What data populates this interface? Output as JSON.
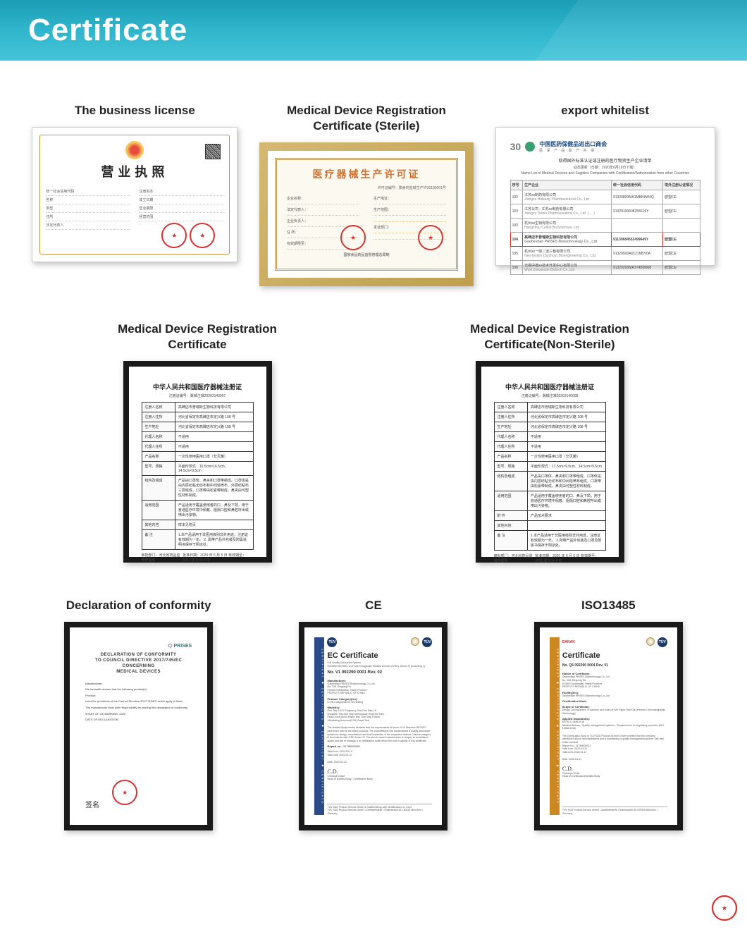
{
  "header": {
    "title": "Certificate"
  },
  "row1": {
    "c1": {
      "title": "The business license",
      "heading": "营业执照",
      "badge_colors": {
        "center": "#e74c3c",
        "ring": "#f5c860"
      },
      "left_fields": [
        "统一社会信用代码",
        "名称",
        "类型",
        "住所",
        "法定代表人"
      ],
      "right_fields": [
        "注册资本",
        "成立日期",
        "营业期限",
        "经营范围"
      ],
      "stamp_color": "#d93030"
    },
    "c2": {
      "title": "Medical Device Registration Certificate (Sterile)",
      "heading": "医疗器械生产许可证",
      "top_right": "许可证编号：豫食药监械生产许20180001号",
      "left_rows": [
        "企业名称：",
        "法定代表人：",
        "企业负责人：",
        "住    所：",
        "有效期限至："
      ],
      "right_rows": [
        "生产地址：",
        "生产范围：",
        "",
        "发证部门：",
        ""
      ],
      "stamp1_text": "河北省",
      "footer": "国家食品药品监督管理总局制",
      "border_color": "#c0995a",
      "title_color": "#d07030"
    },
    "c3": {
      "title": "export whitelist",
      "logo_num": "30",
      "logo_circle_color": "#3aa070",
      "org_cn": "中国医药保健品进出口商会",
      "org_sub": "医 保 产 品    联 产 共 保",
      "caption_cn": "取得国外标准认证或注册的医疗物资生产企业清单",
      "caption_sub": "动态更新（日期：2020年6月19日下载）",
      "caption_en": "Name List of Medical Devices and Supplies Companies with Certification/Authorization from other Countries",
      "cols": [
        "序号",
        "生产企业",
        "统一社会信用代码",
        "境外注册认证情况"
      ],
      "rows": [
        {
          "no": "102",
          "cn": "江苏xx制药有限公司",
          "en": "Jiangsu Huikang Pharmaceutical Co., Ltd",
          "code": "91320800MA1MBN9W4Q",
          "cert": "欧盟CE"
        },
        {
          "no": "103",
          "cn": "江苏公司 - 江苏xx制药有限公司",
          "en": "Jiangsu Demo Pharmaceutical Co., Ltd. ( ... )",
          "code": "91320100608255619Y",
          "cert": "欧盟CE"
        },
        {
          "no": "103",
          "cn": "杭州xx生物有限公司",
          "en": "Hangzhou Calbio BioSciences, Ltd.",
          "code": "",
          "cert": ""
        },
        {
          "no": "104",
          "cn": "高碑店市普瑞斯生物科技有限公司",
          "en": "Gaobeidian PRISES Biotechnology Co., Ltd",
          "code": "91130684552499649Y",
          "cert": "欧盟CE",
          "highlight": true
        },
        {
          "no": "105",
          "cn": "杭州xx一街二道三巷有限公司",
          "en": "Neo-bioxim (Suzhou) Bioengineering Co., Ltd.",
          "code": "91320500A0121M5Y0A",
          "cert": "欧盟CE"
        },
        {
          "no": "106",
          "cn": "无锡中德xx技术开发中心有限公司",
          "en": "Wuxi Zonsensin Biotech Co.,Ltd",
          "code": "91320200MA1T4BM968",
          "cert": "欧盟CE"
        }
      ]
    }
  },
  "row2": {
    "c1": {
      "title": "Medical Device Registration Certificate",
      "doc_title": "中华人民共和国医疗器械注册证",
      "reg_no_label": "注册证编号：冀械注准20202140007",
      "fields": [
        [
          "注册人名称",
          "高碑店市普瑞斯生物科技有限公司"
        ],
        [
          "注册人住所",
          "河北省保定市高碑店市定兴路 108 号"
        ],
        [
          "生产地址",
          "河北省保定市高碑店市定兴路 108 号"
        ],
        [
          "代理人名称",
          "不适用"
        ],
        [
          "代理人住所",
          "不适用"
        ],
        [
          "产品名称",
          "一次性使用医用口罩（非灭菌）"
        ],
        [
          "型号、规格",
          "平面形规式：10.5cm×16.5cm、14.5cm×9.5cm"
        ],
        [
          "结构及组成",
          "产品由口罩体、鼻夹和口罩带组成。口罩体是由内层纺粘无纺布和中间熔喷布、外层纺粘布三层组成。口罩带由松紧带制成。鼻夹由可塑性材料制成。"
        ],
        [
          "适用范围",
          "产品适用于覆盖使用者的口、鼻及下颌，用于普通医疗环境中佩戴、阻隔口腔和鼻腔呼出或喷出污染物。"
        ],
        [
          "其他内容",
          "样本见附页"
        ],
        [
          "备 注",
          "1.本产品适用于非医用级别非外用途，注册证有效期为一年。 2. 需带产品外包装及附属说明书保存于阴凉处。"
        ]
      ],
      "footer_left": "审批部门：河北省药品监督管理局",
      "footer_right": "批准日期：2020 年 6 月 5 日\n有效期至：2021 年 6 月 4 日"
    },
    "c2": {
      "title": "Medical Device Registration Certificate(Non-Sterile)",
      "doc_title": "中华人民共和国医疗器械注册证",
      "reg_no_label": "注册证编号：冀械注准20202140008",
      "fields": [
        [
          "注册人名称",
          "高碑店市普瑞斯生物科技有限公司"
        ],
        [
          "注册人住所",
          "河北省保定市高碑店市定兴路 108 号"
        ],
        [
          "生产地址",
          "河北省保定市高碑店市定兴路 108 号"
        ],
        [
          "代理人名称",
          "不适用"
        ],
        [
          "代理人住所",
          "不适用"
        ],
        [
          "产品名称",
          "一次性使用医用口罩（非灭菌）"
        ],
        [
          "型号、规格",
          "平面形规式：17.5cm×9.5cm、14.5cm×9.5cm"
        ],
        [
          "结构及组成",
          "产品由口罩体、鼻夹和口罩带组成。口罩体是由内层纺粘无纺布和中间熔喷布组成。口罩带由松紧带制成。鼻夹由可塑性材料制成。"
        ],
        [
          "适用范围",
          "产品适用于覆盖使用者的口、鼻及下颌，用于普通医疗环境中佩戴、阻隔口腔和鼻腔呼出或喷出污染物。"
        ],
        [
          "附    件",
          "产品技术要求"
        ],
        [
          "其他内容",
          ""
        ],
        [
          "备 注",
          "1.本产品适用于非医用级别非外用途，注册证有效期为一年。 2.所带产品外包装及口罩及附属书保存于阴凉处。"
        ]
      ],
      "footer_left": "审批部门：河北省药品监督管理局",
      "footer_right": "批准日期：2020 年 6 月 5 日\n有效期至：2021 年 6 月 4 日"
    }
  },
  "row3": {
    "c1": {
      "title": "Declaration of conformity",
      "logo_text": "⬡ PRISES",
      "heading": "DECLARATION OF CONFORMITY\nTO COUNCIL DIRECTIVE 2017/745/EC CONCERNING\nMEDICAL DEVICES",
      "lines": [
        "Manufacturer:",
        "We herewith declare that the following product(s):",
        "Product:",
        "meet the provisions of the Council Directive 2017/745/EC which apply to them.",
        "The manufacturer bear sole responsibility for issuing this declaration of conformity.",
        "START OF CE-MARKING: 2020",
        "DATE OF DECLARATION:"
      ],
      "signature": "签名"
    },
    "c2": {
      "title": "CE",
      "stripe_text": "ZERTIFIKAT ◆ CERTIFICATE ◆ CERTIFICAT ◆ CERTIFICATO",
      "stripe_color": "#2a4a8a",
      "badge_text": "TÜV",
      "heading": "EC Certificate",
      "sub": "Full Quality Assurance System\nDirective 98/79/EC on In Vitro Diagnostic Medical Devices (IVDD), Annex IV (excluding 4)",
      "reg_no": "No. V1 092290 0001 Rev. 02",
      "fields": [
        [
          "Manufacturer:",
          "Gaobeidian PRISES Biotechnology Co.,Ltd.\nNo. 108, Dingxing Rd\n074000 Gaobeidian, Hebei Province\nPEOPLE'S REPUBLIC OF CHINA"
        ],
        [
          "Product Category(ies):",
          "In Vitro diagnostic for self testing"
        ],
        [
          "Model(s):",
          "One Step HCG Pregnancy Test,One Step LH\nOvulation Test,One Step Menopause Test/One Step\nFetal Occult Blood Rapid Test, One Step Follicle\nStimulating Hormone(FSH) Rapid Test"
        ]
      ],
      "para": "The Notified Body hereby declares that the requirements of Annex IV of Directive 98/79/EC have been met for the listed products. The manufacturer has implemented a quality assurance system for design, manufacture and final inspection of the respective devices / device category in accordance with IVDD Annex IV. The above named manufacturer is subject to surveillance audits and has to undergo a re-certification audit before the end of validity of this certificate.",
      "report_no": "Report no.:",
      "report_val": "31789005001",
      "valid_from": "Valid from:  2020-03-13",
      "valid_until": "Valid until:  2025-03-12",
      "date": "Date, 2020-03-13",
      "signatory": "Christoph Dicke\nHead of Notified Body / Certification Body",
      "footer": "TÜV SÜD Product Service GmbH is Notified Body with identification no. 0123\nTÜV SÜD Product Service GmbH • Zertifizierstelle • Ridlerstraße 65 • 80339 München • Germany"
    },
    "c3": {
      "title": "ISO13485",
      "stripe_text": "ZERTIFIKAT ◆ CERTIFICATE ◆ CERTIFICAT ◆ CERTIFICATE",
      "stripe_color": "#cc8820",
      "danak": "DANAK",
      "badge_text": "TÜV",
      "heading": "Certificate",
      "cert_no": "No. Q5 092290 0004 Rev. 01",
      "fields": [
        [
          "Holder of Certificate:",
          "Gaobeidian PRISES Biotechnology Co.,Ltd.\nNo. 108, Dingxing Rd\n074000 Gaobeidian, Hebei Province\nPEOPLE'S REPUBLIC OF CHINA"
        ],
        [
          "Facility(ies):",
          "Gaobeidian PRISES Biotechnology Co.,Ltd."
        ],
        [
          "Certification Mark:",
          ""
        ],
        [
          "Scope of Certificate:",
          "Design, Development, Production and Sales of IVD Rapid Test Kits (Immune Chromatographic Technology)"
        ],
        [
          "Applied Standard(s):",
          "EN ISO 13485:2016\nMedical devices - Quality management systems - Requirements for regulatory purposes (ISO 13485:2016)"
        ]
      ],
      "para": "The Certification Body of TÜV SÜD Product Service GmbH certifies that the company mentioned above has established and is maintaining a quality management system. See also notes overleaf.",
      "report_no": "Report No.:  31789005001",
      "valid_from": "Valid from:  2020-03-31",
      "valid_until": "Valid until:  2023-01-17",
      "date": "Date, 2020-03-31",
      "signatory": "Christoph Dicke\nHead of Certification/Notified Body",
      "footer": "TÜV SÜD Product Service GmbH • Zertifizierstelle • Ridlerstraße 65 • 80339 München • Germany"
    }
  }
}
